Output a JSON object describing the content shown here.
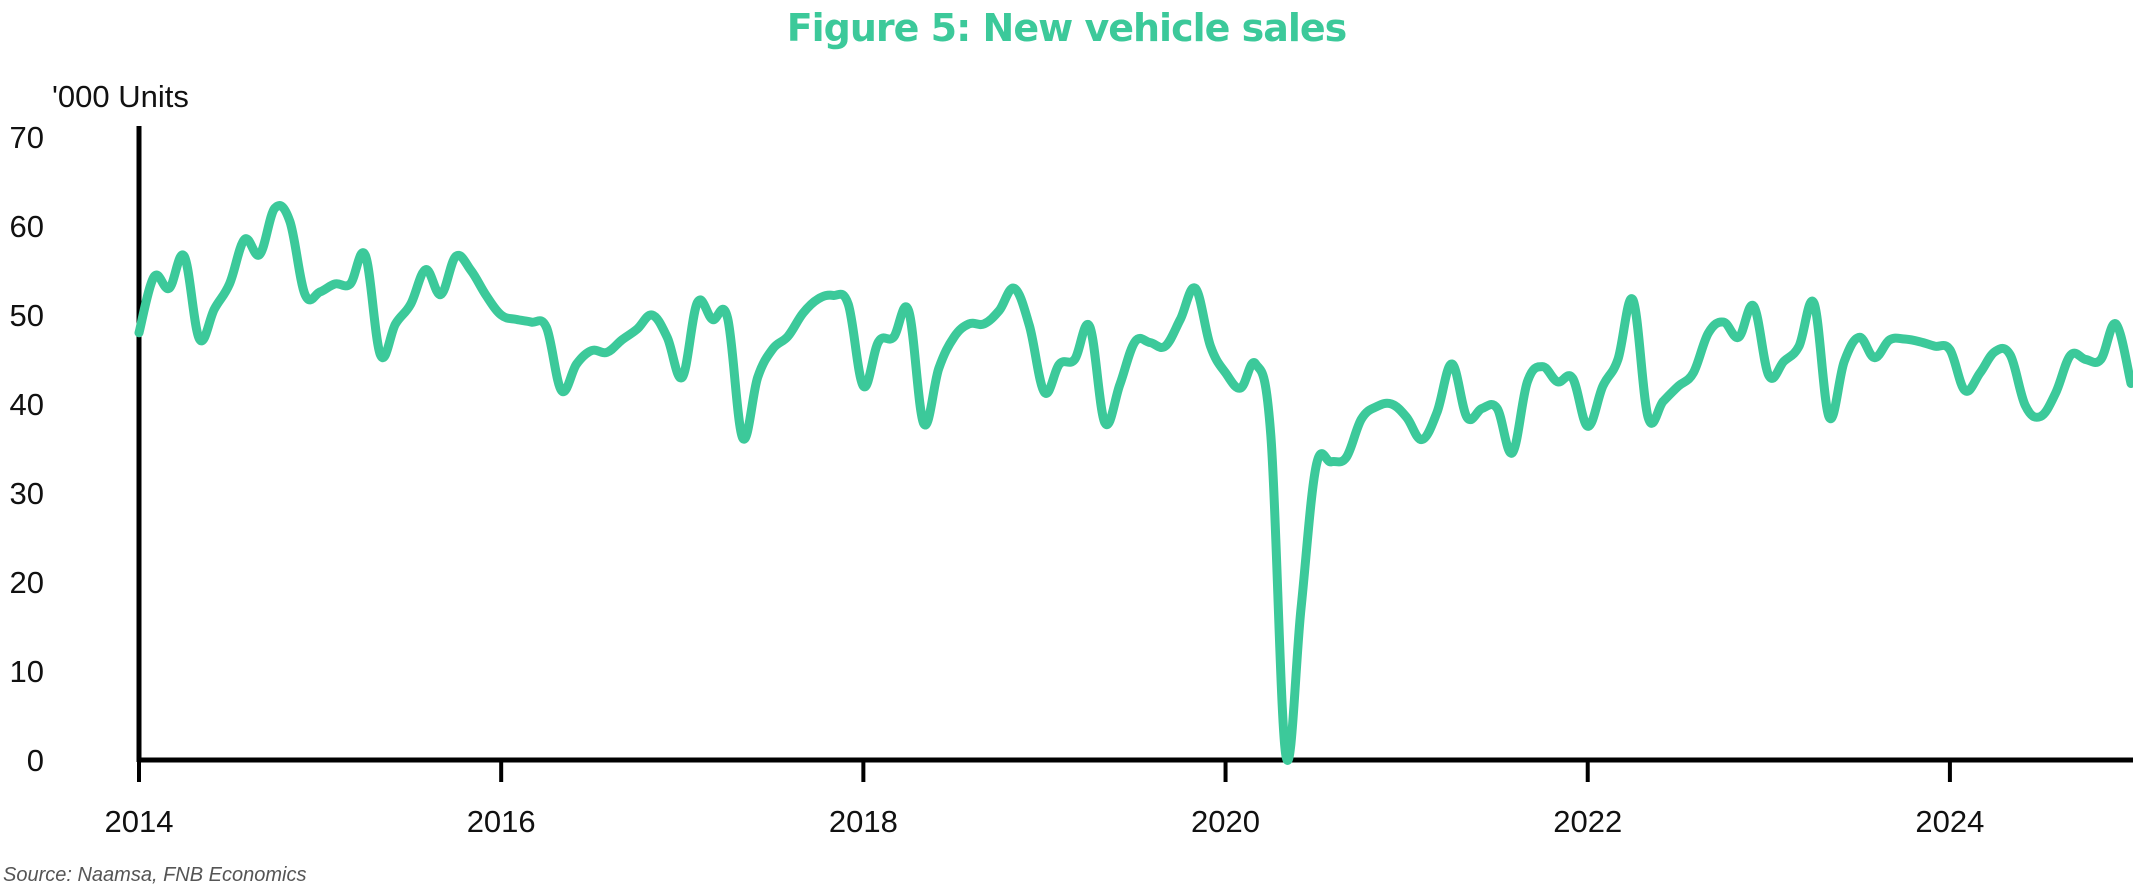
{
  "chart_data": {
    "type": "line",
    "title": "Figure 5: New vehicle sales",
    "ylabel": "'000 Units",
    "xlabel": "",
    "ylim": [
      0,
      70
    ],
    "xlim": [
      "2014-01",
      "2024-12"
    ],
    "yticks": [
      "0",
      "10",
      "20",
      "30",
      "40",
      "50",
      "60",
      "70"
    ],
    "xticks": [
      "2014",
      "2016",
      "2018",
      "2020",
      "2022",
      "2024"
    ],
    "grid": false,
    "legend": "none",
    "source": "Source: Naamsa, FNB Economics",
    "colors": {
      "line": "#3CC99A",
      "title": "#3CC99A",
      "axis": "#000000"
    },
    "series": [
      {
        "x": [
          "2014-01",
          "2014-02",
          "2014-03",
          "2014-04",
          "2014-05",
          "2014-06",
          "2014-07",
          "2014-08",
          "2014-09",
          "2014-10",
          "2014-11",
          "2014-12",
          "2015-01",
          "2015-02",
          "2015-03",
          "2015-04",
          "2015-05",
          "2015-06",
          "2015-07",
          "2015-08",
          "2015-09",
          "2015-10",
          "2015-11",
          "2015-12",
          "2016-01",
          "2016-02",
          "2016-03",
          "2016-04",
          "2016-05",
          "2016-06",
          "2016-07",
          "2016-08",
          "2016-09",
          "2016-10",
          "2016-11",
          "2016-12",
          "2017-01",
          "2017-02",
          "2017-03",
          "2017-04",
          "2017-05",
          "2017-06",
          "2017-07",
          "2017-08",
          "2017-09",
          "2017-10",
          "2017-11",
          "2017-12",
          "2018-01",
          "2018-02",
          "2018-03",
          "2018-04",
          "2018-05",
          "2018-06",
          "2018-07",
          "2018-08",
          "2018-09",
          "2018-10",
          "2018-11",
          "2018-12",
          "2019-01",
          "2019-02",
          "2019-03",
          "2019-04",
          "2019-05",
          "2019-06",
          "2019-07",
          "2019-08",
          "2019-09",
          "2019-10",
          "2019-11",
          "2019-12",
          "2020-01",
          "2020-02",
          "2020-03",
          "2020-04",
          "2020-05",
          "2020-06",
          "2020-07",
          "2020-08",
          "2020-09",
          "2020-10",
          "2020-11",
          "2020-12",
          "2021-01",
          "2021-02",
          "2021-03",
          "2021-04",
          "2021-05",
          "2021-06",
          "2021-07",
          "2021-08",
          "2021-09",
          "2021-10",
          "2021-11",
          "2021-12",
          "2022-01",
          "2022-02",
          "2022-03",
          "2022-04",
          "2022-05",
          "2022-06",
          "2022-07",
          "2022-08",
          "2022-09",
          "2022-10",
          "2022-11",
          "2022-12",
          "2023-01",
          "2023-02",
          "2023-03",
          "2023-04",
          "2023-05",
          "2023-06",
          "2023-07",
          "2023-08",
          "2023-09",
          "2023-10",
          "2023-11",
          "2023-12",
          "2024-01",
          "2024-02",
          "2024-03",
          "2024-04",
          "2024-05",
          "2024-06",
          "2024-07",
          "2024-08",
          "2024-09",
          "2024-10",
          "2024-11",
          "2024-12"
        ],
        "values": [
          48.0,
          54.3,
          53.0,
          56.6,
          47.3,
          50.7,
          53.5,
          58.5,
          56.8,
          62.0,
          60.5,
          52.3,
          52.6,
          53.5,
          53.5,
          56.7,
          45.5,
          49.0,
          51.2,
          55.1,
          52.3,
          56.6,
          55.0,
          52.2,
          50.0,
          49.5,
          49.2,
          48.6,
          41.5,
          44.5,
          46.0,
          45.8,
          47.2,
          48.4,
          50.0,
          47.5,
          43.0,
          51.4,
          49.5,
          49.7,
          36.2,
          43.0,
          46.2,
          47.6,
          50.2,
          51.8,
          52.2,
          51.2,
          42.0,
          47.0,
          47.5,
          50.5,
          37.8,
          44.0,
          47.5,
          49.0,
          49.0,
          50.5,
          53.0,
          48.8,
          41.3,
          44.5,
          45.0,
          48.7,
          37.9,
          42.2,
          47.0,
          46.9,
          46.5,
          49.5,
          53.0,
          46.5,
          43.5,
          41.8,
          44.5,
          36.5,
          0.5,
          17.0,
          33.0,
          33.5,
          34.0,
          38.3,
          39.7,
          40.0,
          38.5,
          36.0,
          39.0,
          44.5,
          38.5,
          39.5,
          39.5,
          34.5,
          42.5,
          44.2,
          42.5,
          42.9,
          37.5,
          42.0,
          45.0,
          51.7,
          38.5,
          40.3,
          42.0,
          43.5,
          48.0,
          49.2,
          47.5,
          51.0,
          43.2,
          44.8,
          46.5,
          51.3,
          38.5,
          44.8,
          47.5,
          45.2,
          47.2,
          47.3,
          47.0,
          46.5,
          46.1,
          41.5,
          43.5,
          45.9,
          45.5,
          39.8,
          38.6,
          41.2,
          45.5,
          45.0,
          45.0,
          49.0
        ]
      }
    ],
    "x_extra": [
      "2025-01"
    ],
    "values_extra": [
      42.3
    ]
  }
}
